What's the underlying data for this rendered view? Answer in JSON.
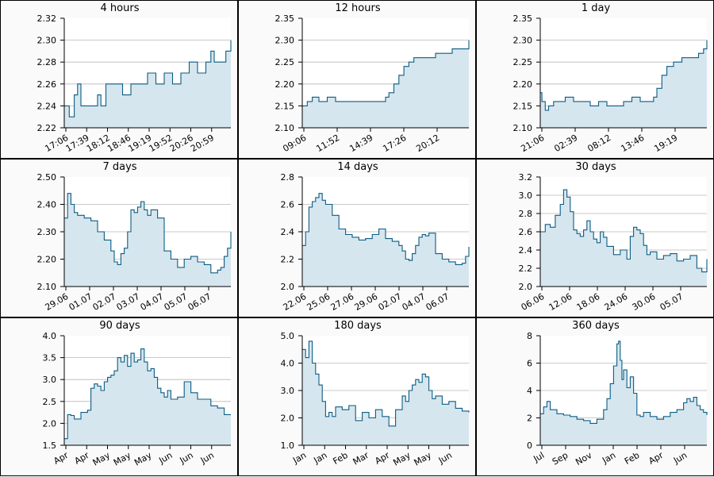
{
  "colors": {
    "line": "#0b5d85",
    "fill": "#d6e6ee",
    "grid": "#b8b8b8",
    "plot_bg": "#ffffff",
    "panel_bg": "#fafafa",
    "border": "#000000"
  },
  "chart_data": [
    {
      "type": "area",
      "title": "4 hours",
      "ylim": [
        2.22,
        2.32
      ],
      "yticks": [
        "2.22",
        "2.24",
        "2.26",
        "2.28",
        "2.30",
        "2.32"
      ],
      "xticks": [
        "17:06",
        "17:39",
        "18:12",
        "18:46",
        "19:19",
        "19:52",
        "20:26",
        "20:59"
      ],
      "x": [
        0,
        3,
        6,
        8,
        10,
        13,
        17,
        20,
        22,
        25,
        30,
        35,
        40,
        45,
        50,
        55,
        60,
        62,
        65,
        70,
        75,
        80,
        85,
        88,
        90,
        92,
        95,
        97,
        100
      ],
      "y": [
        2.24,
        2.23,
        2.25,
        2.26,
        2.24,
        2.24,
        2.24,
        2.25,
        2.24,
        2.26,
        2.26,
        2.25,
        2.26,
        2.26,
        2.27,
        2.26,
        2.27,
        2.27,
        2.26,
        2.27,
        2.28,
        2.27,
        2.28,
        2.29,
        2.28,
        2.28,
        2.28,
        2.29,
        2.3
      ],
      "grid": true
    },
    {
      "type": "area",
      "title": "12 hours",
      "ylim": [
        2.1,
        2.35
      ],
      "yticks": [
        "2.10",
        "2.15",
        "2.20",
        "2.25",
        "2.30",
        "2.35"
      ],
      "xticks": [
        "09:06",
        "11:52",
        "14:39",
        "17:26",
        "20:12"
      ],
      "x": [
        0,
        3,
        6,
        10,
        15,
        20,
        25,
        30,
        35,
        40,
        45,
        50,
        52,
        55,
        58,
        61,
        64,
        67,
        70,
        75,
        80,
        85,
        90,
        95,
        98,
        100
      ],
      "y": [
        2.15,
        2.16,
        2.17,
        2.16,
        2.17,
        2.16,
        2.16,
        2.16,
        2.16,
        2.16,
        2.16,
        2.17,
        2.18,
        2.2,
        2.22,
        2.24,
        2.25,
        2.26,
        2.26,
        2.26,
        2.27,
        2.27,
        2.28,
        2.28,
        2.28,
        2.3
      ],
      "grid": true
    },
    {
      "type": "area",
      "title": "1 day",
      "ylim": [
        2.1,
        2.35
      ],
      "yticks": [
        "2.10",
        "2.15",
        "2.20",
        "2.25",
        "2.30",
        "2.35"
      ],
      "xticks": [
        "21:06",
        "02:39",
        "08:12",
        "13:46",
        "19:19"
      ],
      "x": [
        0,
        1,
        3,
        5,
        8,
        12,
        15,
        20,
        25,
        30,
        35,
        40,
        45,
        50,
        55,
        60,
        65,
        68,
        70,
        73,
        76,
        80,
        85,
        90,
        95,
        98,
        100
      ],
      "y": [
        2.18,
        2.16,
        2.14,
        2.15,
        2.16,
        2.16,
        2.17,
        2.16,
        2.16,
        2.15,
        2.16,
        2.15,
        2.15,
        2.16,
        2.17,
        2.16,
        2.16,
        2.17,
        2.19,
        2.22,
        2.24,
        2.25,
        2.26,
        2.26,
        2.27,
        2.28,
        2.3
      ],
      "grid": true
    },
    {
      "type": "area",
      "title": "7 days",
      "ylim": [
        2.1,
        2.5
      ],
      "yticks": [
        "2.10",
        "2.20",
        "2.30",
        "2.40",
        "2.50"
      ],
      "xticks": [
        "29.06",
        "01.07",
        "02.07",
        "03.07",
        "04.07",
        "05.07",
        "06.07"
      ],
      "x": [
        0,
        2,
        4,
        6,
        8,
        12,
        16,
        20,
        24,
        28,
        30,
        32,
        34,
        36,
        38,
        40,
        42,
        44,
        46,
        48,
        50,
        52,
        56,
        60,
        64,
        68,
        72,
        76,
        80,
        84,
        88,
        90,
        92,
        94,
        96,
        98,
        100
      ],
      "y": [
        2.35,
        2.44,
        2.4,
        2.37,
        2.36,
        2.35,
        2.34,
        2.3,
        2.27,
        2.23,
        2.19,
        2.18,
        2.22,
        2.24,
        2.3,
        2.38,
        2.37,
        2.39,
        2.41,
        2.38,
        2.36,
        2.38,
        2.35,
        2.23,
        2.2,
        2.17,
        2.2,
        2.21,
        2.19,
        2.18,
        2.15,
        2.15,
        2.16,
        2.17,
        2.21,
        2.24,
        2.3
      ],
      "grid": true
    },
    {
      "type": "area",
      "title": "14 days",
      "ylim": [
        2.0,
        2.8
      ],
      "yticks": [
        "2.0",
        "2.2",
        "2.4",
        "2.6",
        "2.8"
      ],
      "xticks": [
        "22.06",
        "25.06",
        "27.06",
        "29.06",
        "02.07",
        "04.07",
        "06.07"
      ],
      "x": [
        0,
        2,
        4,
        6,
        8,
        10,
        12,
        14,
        18,
        22,
        26,
        30,
        34,
        38,
        42,
        46,
        50,
        54,
        58,
        60,
        62,
        64,
        66,
        68,
        70,
        72,
        74,
        76,
        80,
        84,
        88,
        92,
        96,
        98,
        100
      ],
      "y": [
        2.3,
        2.4,
        2.58,
        2.62,
        2.65,
        2.68,
        2.63,
        2.6,
        2.52,
        2.42,
        2.38,
        2.36,
        2.34,
        2.35,
        2.38,
        2.42,
        2.35,
        2.33,
        2.3,
        2.26,
        2.2,
        2.19,
        2.24,
        2.3,
        2.36,
        2.38,
        2.37,
        2.39,
        2.24,
        2.2,
        2.18,
        2.16,
        2.17,
        2.22,
        2.29
      ],
      "grid": true
    },
    {
      "type": "area",
      "title": "30 days",
      "ylim": [
        2.0,
        3.2
      ],
      "yticks": [
        "2.0",
        "2.2",
        "2.4",
        "2.6",
        "2.8",
        "3.0",
        "3.2"
      ],
      "xticks": [
        "06.06",
        "12.06",
        "18.06",
        "24.06",
        "30.06",
        "05.07"
      ],
      "x": [
        0,
        3,
        6,
        9,
        12,
        14,
        16,
        18,
        20,
        22,
        24,
        26,
        28,
        30,
        32,
        34,
        36,
        38,
        40,
        44,
        48,
        52,
        54,
        56,
        58,
        60,
        62,
        64,
        66,
        70,
        74,
        78,
        82,
        86,
        90,
        94,
        97,
        100
      ],
      "y": [
        2.6,
        2.68,
        2.65,
        2.78,
        2.9,
        3.06,
        2.98,
        2.82,
        2.62,
        2.58,
        2.55,
        2.62,
        2.72,
        2.6,
        2.52,
        2.48,
        2.6,
        2.54,
        2.44,
        2.35,
        2.4,
        2.3,
        2.55,
        2.65,
        2.62,
        2.58,
        2.45,
        2.35,
        2.38,
        2.3,
        2.34,
        2.36,
        2.28,
        2.3,
        2.34,
        2.2,
        2.16,
        2.3
      ],
      "grid": true
    },
    {
      "type": "area",
      "title": "90 days",
      "ylim": [
        1.5,
        4.0
      ],
      "yticks": [
        "1.5",
        "2.0",
        "2.5",
        "3.0",
        "3.5",
        "4.0"
      ],
      "xticks": [
        "Apr",
        "Apr",
        "May",
        "May",
        "May",
        "Jun",
        "Jun",
        "Jun"
      ],
      "x": [
        0,
        2,
        4,
        6,
        10,
        14,
        16,
        18,
        20,
        22,
        24,
        26,
        28,
        30,
        32,
        34,
        36,
        38,
        40,
        42,
        44,
        46,
        48,
        50,
        52,
        54,
        56,
        58,
        60,
        62,
        64,
        68,
        72,
        76,
        80,
        84,
        88,
        92,
        96,
        100
      ],
      "y": [
        1.65,
        2.2,
        2.18,
        2.1,
        2.25,
        2.3,
        2.8,
        2.9,
        2.85,
        2.75,
        2.95,
        3.05,
        3.1,
        3.2,
        3.5,
        3.4,
        3.55,
        3.3,
        3.6,
        3.4,
        3.45,
        3.7,
        3.4,
        3.2,
        3.25,
        3.05,
        2.8,
        2.7,
        2.6,
        2.75,
        2.55,
        2.6,
        2.95,
        2.7,
        2.55,
        2.55,
        2.4,
        2.35,
        2.2,
        2.2
      ],
      "grid": true
    },
    {
      "type": "area",
      "title": "180 days",
      "ylim": [
        1.0,
        5.0
      ],
      "yticks": [
        "1.0",
        "2.0",
        "3.0",
        "4.0",
        "5.0"
      ],
      "xticks": [
        "Jan",
        "Jan",
        "Feb",
        "Mar",
        "Apr",
        "May",
        "May",
        "Jun"
      ],
      "x": [
        0,
        2,
        4,
        6,
        8,
        10,
        12,
        14,
        16,
        18,
        20,
        24,
        28,
        32,
        36,
        40,
        44,
        48,
        52,
        56,
        60,
        62,
        64,
        66,
        68,
        70,
        72,
        74,
        76,
        78,
        80,
        84,
        88,
        92,
        96,
        100
      ],
      "y": [
        4.5,
        4.2,
        4.8,
        4.0,
        3.6,
        3.2,
        2.6,
        2.05,
        2.2,
        2.05,
        2.4,
        2.3,
        2.45,
        1.9,
        2.2,
        2.0,
        2.3,
        2.05,
        1.7,
        2.3,
        2.8,
        2.6,
        3.0,
        3.2,
        3.4,
        3.3,
        3.6,
        3.5,
        3.0,
        2.7,
        2.8,
        2.5,
        2.6,
        2.35,
        2.25,
        2.2
      ],
      "grid": true
    },
    {
      "type": "area",
      "title": "360 days",
      "ylim": [
        0,
        8
      ],
      "yticks": [
        "0",
        "2",
        "4",
        "6",
        "8"
      ],
      "xticks": [
        "Jul",
        "Sep",
        "Nov",
        "Jan",
        "Feb",
        "Apr",
        "Jun"
      ],
      "x": [
        0,
        2,
        4,
        6,
        10,
        14,
        18,
        22,
        26,
        30,
        34,
        38,
        40,
        42,
        44,
        46,
        47,
        48,
        49,
        50,
        52,
        54,
        56,
        58,
        60,
        62,
        66,
        70,
        74,
        78,
        82,
        86,
        88,
        90,
        92,
        94,
        96,
        98,
        100
      ],
      "y": [
        2.3,
        2.8,
        3.2,
        2.6,
        2.3,
        2.2,
        2.1,
        1.9,
        1.8,
        1.6,
        1.9,
        2.6,
        3.4,
        4.5,
        5.8,
        7.4,
        7.6,
        6.2,
        4.8,
        5.5,
        4.2,
        5.0,
        3.8,
        2.2,
        2.1,
        2.4,
        2.1,
        1.9,
        2.1,
        2.4,
        2.6,
        3.1,
        3.4,
        3.2,
        3.5,
        2.9,
        2.6,
        2.4,
        2.2
      ],
      "grid": true
    }
  ]
}
